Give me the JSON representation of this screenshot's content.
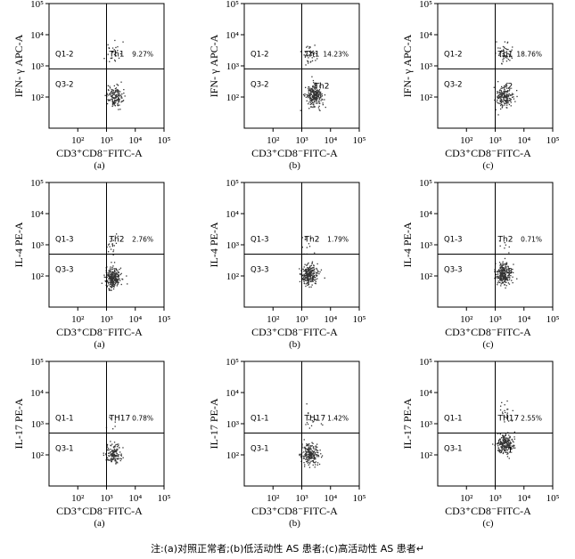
{
  "figure": {
    "footer_note": "注:(a)对照正常者;(b)低活动性 AS 患者;(c)高活动性 AS 患者↵",
    "tick_labels": {
      "x": [
        "10²",
        "10³",
        "10⁴",
        "10⁵"
      ],
      "y": [
        "10²",
        "10³",
        "10⁴",
        "10⁵"
      ]
    },
    "x_axis_label": "CD3⁺CD8⁻FITC-A",
    "dot_color": "#333333"
  },
  "chart_data": [
    {
      "type": "scatter",
      "row": 0,
      "col": 0,
      "ylabel": "IFN- γ APC-A",
      "xlabel": "CD3⁺CD8⁻FITC-A",
      "sublabel": "(a)",
      "upper_gate": "Q1-2",
      "lower_gate": "Q3-2",
      "population": "Th1",
      "overlay": "",
      "percent": "9.27%",
      "xlim": [
        10,
        100000
      ],
      "ylim": [
        10,
        100000
      ],
      "quadrant_x": 1000,
      "quadrant_y": 800,
      "cluster_center": [
        1800,
        110
      ],
      "cluster_count": 150,
      "upper_center": [
        1700,
        2500
      ],
      "upper_count": 30
    },
    {
      "type": "scatter",
      "row": 0,
      "col": 1,
      "ylabel": "IFN- γ APC-A",
      "xlabel": "CD3⁺CD8⁻FITC-A",
      "sublabel": "(b)",
      "upper_gate": "Q1-2",
      "lower_gate": "Q3-2",
      "population": "Th1",
      "overlay": "Th2",
      "percent": "14.23%",
      "xlim": [
        10,
        100000
      ],
      "ylim": [
        10,
        100000
      ],
      "quadrant_x": 1000,
      "quadrant_y": 800,
      "cluster_center": [
        2500,
        110
      ],
      "cluster_count": 240,
      "upper_center": [
        1900,
        2400
      ],
      "upper_count": 40
    },
    {
      "type": "scatter",
      "row": 0,
      "col": 2,
      "ylabel": "IFN- γ APC-A",
      "xlabel": "CD3⁺CD8⁻FITC-A",
      "sublabel": "(c)",
      "upper_gate": "Q1-2",
      "lower_gate": "Q3-2",
      "population": "Th1",
      "overlay": "2",
      "percent": "18.76%",
      "xlim": [
        10,
        100000
      ],
      "ylim": [
        10,
        100000
      ],
      "quadrant_x": 1000,
      "quadrant_y": 800,
      "cluster_center": [
        2000,
        110
      ],
      "cluster_count": 190,
      "upper_center": [
        2100,
        2700
      ],
      "upper_count": 55
    },
    {
      "type": "scatter",
      "row": 1,
      "col": 0,
      "ylabel": "IL-4 PE-A",
      "xlabel": "CD3⁺CD8⁻FITC-A",
      "sublabel": "(a)",
      "upper_gate": "Q1-3",
      "lower_gate": "Q3-3",
      "population": "Th2",
      "overlay": "",
      "percent": "2.76%",
      "xlim": [
        10,
        100000
      ],
      "ylim": [
        10,
        100000
      ],
      "quadrant_x": 1000,
      "quadrant_y": 500,
      "cluster_center": [
        1600,
        90
      ],
      "cluster_count": 260,
      "upper_center": [
        1500,
        1100
      ],
      "upper_count": 20
    },
    {
      "type": "scatter",
      "row": 1,
      "col": 1,
      "ylabel": "IL-4 PE-A",
      "xlabel": "CD3⁺CD8⁻FITC-A",
      "sublabel": "(b)",
      "upper_gate": "Q1-3",
      "lower_gate": "Q3-3",
      "population": "Th2",
      "overlay": "",
      "percent": "1.79%",
      "xlim": [
        10,
        100000
      ],
      "ylim": [
        10,
        100000
      ],
      "quadrant_x": 1000,
      "quadrant_y": 500,
      "cluster_center": [
        1700,
        110
      ],
      "cluster_count": 250,
      "upper_center": [
        1600,
        1000
      ],
      "upper_count": 12
    },
    {
      "type": "scatter",
      "row": 1,
      "col": 2,
      "ylabel": "IL-4 PE-A",
      "xlabel": "CD3⁺CD8⁻FITC-A",
      "sublabel": "(c)",
      "upper_gate": "Q1-3",
      "lower_gate": "Q3-3",
      "population": "Th2",
      "overlay": "3",
      "percent": "0.71%",
      "xlim": [
        10,
        100000
      ],
      "ylim": [
        10,
        100000
      ],
      "quadrant_x": 1000,
      "quadrant_y": 500,
      "cluster_center": [
        1900,
        120
      ],
      "cluster_count": 250,
      "upper_center": [
        1800,
        900
      ],
      "upper_count": 6
    },
    {
      "type": "scatter",
      "row": 2,
      "col": 0,
      "ylabel": "IL-17 PE-A",
      "xlabel": "CD3⁺CD8⁻FITC-A",
      "sublabel": "(a)",
      "upper_gate": "Q1-1",
      "lower_gate": "Q3-1",
      "population": "TH17",
      "overlay": "",
      "percent": "0.78%",
      "xlim": [
        10,
        100000
      ],
      "ylim": [
        10,
        100000
      ],
      "quadrant_x": 1000,
      "quadrant_y": 500,
      "cluster_center": [
        1700,
        110
      ],
      "cluster_count": 140,
      "upper_center": [
        1600,
        800
      ],
      "upper_count": 8
    },
    {
      "type": "scatter",
      "row": 2,
      "col": 1,
      "ylabel": "IL-17 PE-A",
      "xlabel": "CD3⁺CD8⁻FITC-A",
      "sublabel": "(b)",
      "upper_gate": "Q1-1",
      "lower_gate": "Q3-1",
      "population": "TH17",
      "overlay": "",
      "percent": "1.42%",
      "xlim": [
        10,
        100000
      ],
      "ylim": [
        10,
        100000
      ],
      "quadrant_x": 1000,
      "quadrant_y": 500,
      "cluster_center": [
        1900,
        110
      ],
      "cluster_count": 210,
      "upper_center": [
        2200,
        1400
      ],
      "upper_count": 18
    },
    {
      "type": "scatter",
      "row": 2,
      "col": 2,
      "ylabel": "IL-17 PE-A",
      "xlabel": "CD3⁺CD8⁻FITC-A",
      "sublabel": "(c)",
      "upper_gate": "Q1-1",
      "lower_gate": "Q3-1",
      "population": "TH17",
      "overlay": "1",
      "percent": "2.55%",
      "xlim": [
        10,
        100000
      ],
      "ylim": [
        10,
        100000
      ],
      "quadrant_x": 1000,
      "quadrant_y": 500,
      "cluster_center": [
        2100,
        220
      ],
      "cluster_count": 210,
      "upper_center": [
        2200,
        2000
      ],
      "upper_count": 22
    }
  ]
}
